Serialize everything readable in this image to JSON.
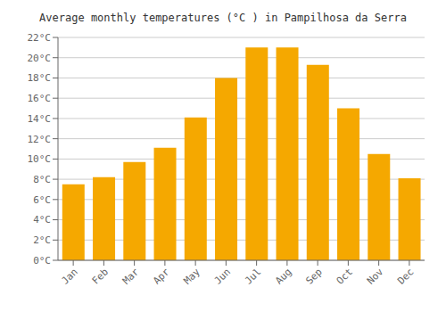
{
  "chart_data": {
    "type": "bar",
    "title": "Average monthly temperatures (°C ) in Pampilhosa da Serra",
    "categories": [
      "Jan",
      "Feb",
      "Mar",
      "Apr",
      "May",
      "Jun",
      "Jul",
      "Aug",
      "Sep",
      "Oct",
      "Nov",
      "Dec"
    ],
    "values": [
      7.5,
      8.2,
      9.7,
      11.1,
      14.1,
      18.0,
      21.0,
      21.0,
      19.3,
      15.0,
      10.5,
      8.1
    ],
    "color": "#F5A800",
    "ylim": [
      0,
      22
    ],
    "yticks": [
      {
        "value": 0,
        "label": "0°C"
      },
      {
        "value": 2,
        "label": "2°C"
      },
      {
        "value": 4,
        "label": "4°C"
      },
      {
        "value": 6,
        "label": "6°C"
      },
      {
        "value": 8,
        "label": "8°C"
      },
      {
        "value": 10,
        "label": "10°C"
      },
      {
        "value": 12,
        "label": "12°C"
      },
      {
        "value": 14,
        "label": "14°C"
      },
      {
        "value": 16,
        "label": "16°C"
      },
      {
        "value": 18,
        "label": "18°C"
      },
      {
        "value": 20,
        "label": "20°C"
      },
      {
        "value": 22,
        "label": "22°C"
      }
    ],
    "grid": true
  }
}
